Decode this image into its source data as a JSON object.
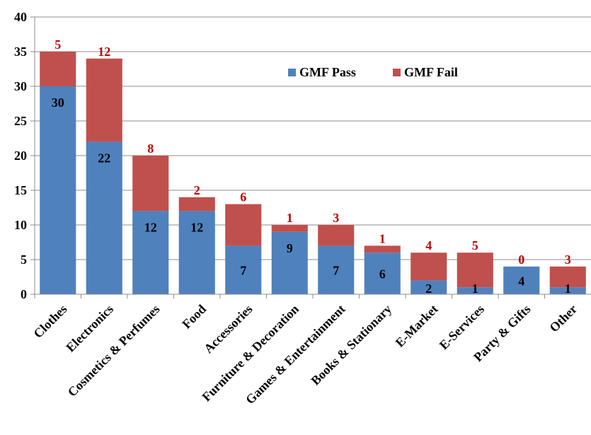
{
  "chart_data": {
    "type": "bar",
    "stacked": true,
    "title": "",
    "xlabel": "",
    "ylabel": "",
    "ylim": [
      0,
      40
    ],
    "yticks": [
      0,
      5,
      10,
      15,
      20,
      25,
      30,
      35,
      40
    ],
    "grid": true,
    "legend_position": "top-right",
    "categories": [
      "Clothes",
      "Electronics",
      "Cosmetics & Perfumes",
      "Food",
      "Accessories",
      "Furniture & Decoration",
      "Games & Entertainment",
      "Books & Stationary",
      "E-Market",
      "E-Services",
      "Party & Gifts",
      "Other"
    ],
    "series": [
      {
        "name": "GMF Pass",
        "color": "#4f81bd",
        "values": [
          30,
          22,
          12,
          12,
          7,
          9,
          7,
          6,
          2,
          1,
          4,
          1
        ]
      },
      {
        "name": "GMF Fail",
        "color": "#c0504d",
        "values": [
          5,
          12,
          8,
          2,
          6,
          1,
          3,
          1,
          4,
          5,
          0,
          3
        ]
      }
    ],
    "fail_label_color": "#c00000"
  }
}
